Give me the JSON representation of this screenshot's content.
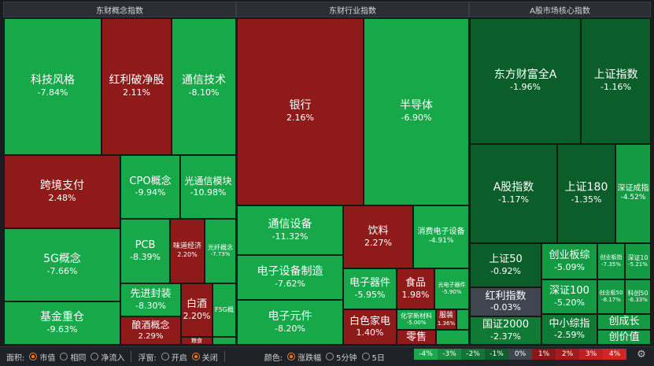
{
  "headers": {
    "concept": "东财概念指数",
    "industry": "东财行业指数",
    "market": "A股市场核心指数"
  },
  "concept_tiles": [
    {
      "name": "科技风格",
      "pct": "-7.84%"
    },
    {
      "name": "红利破净股",
      "pct": "2.11%"
    },
    {
      "name": "通信技术",
      "pct": "-8.10%"
    },
    {
      "name": "跨境支付",
      "pct": "2.48%"
    },
    {
      "name": "CPO概念",
      "pct": "-9.94%"
    },
    {
      "name": "光通信模块",
      "pct": "-10.98%"
    },
    {
      "name": "5G概念",
      "pct": "-7.66%"
    },
    {
      "name": "PCB",
      "pct": "-8.39%"
    },
    {
      "name": "味道经济",
      "pct": "2.20%"
    },
    {
      "name": "光纤概念",
      "pct": "-7.73%"
    },
    {
      "name": "先进封装",
      "pct": "-8.30%"
    },
    {
      "name": "白酒",
      "pct": "2.20%"
    },
    {
      "name": "F5G概",
      "pct": ""
    },
    {
      "name": "基金重仓",
      "pct": "-9.63%"
    },
    {
      "name": "酿酒概念",
      "pct": "2.29%"
    },
    {
      "name": "粮食",
      "pct": ""
    }
  ],
  "industry_tiles": [
    {
      "name": "银行",
      "pct": "2.16%"
    },
    {
      "name": "半导体",
      "pct": "-6.90%"
    },
    {
      "name": "通信设备",
      "pct": "-11.32%"
    },
    {
      "name": "饮料",
      "pct": "2.27%"
    },
    {
      "name": "消费电子设备",
      "pct": "-4.91%"
    },
    {
      "name": "电子设备制造",
      "pct": "-7.62%"
    },
    {
      "name": "电子器件",
      "pct": "-5.95%"
    },
    {
      "name": "食品",
      "pct": "1.98%"
    },
    {
      "name": "光电子器件",
      "pct": "-5.90%"
    },
    {
      "name": "电子元件",
      "pct": "-8.20%"
    },
    {
      "name": "白色家电",
      "pct": "1.40%"
    },
    {
      "name": "化学新材料",
      "pct": "-5.00%"
    },
    {
      "name": "服装",
      "pct": "1.36%"
    },
    {
      "name": "零售",
      "pct": ""
    }
  ],
  "market_tiles": [
    {
      "name": "东方财富全A",
      "pct": "-1.96%"
    },
    {
      "name": "上证指数",
      "pct": "-1.16%"
    },
    {
      "name": "A股指数",
      "pct": "-1.17%"
    },
    {
      "name": "上证180",
      "pct": "-1.35%"
    },
    {
      "name": "深证成指",
      "pct": "-4.52%"
    },
    {
      "name": "上证50",
      "pct": "-0.92%"
    },
    {
      "name": "创业板综",
      "pct": "-5.09%"
    },
    {
      "name": "创业板指",
      "pct": "-7.35%"
    },
    {
      "name": "深证10",
      "pct": "-5.21%"
    },
    {
      "name": "红利指数",
      "pct": "-0.03%"
    },
    {
      "name": "深证100",
      "pct": "-5.20%"
    },
    {
      "name": "创业板50",
      "pct": "-8.17%"
    },
    {
      "name": "科创50",
      "pct": "-6.33%"
    },
    {
      "name": "国证2000",
      "pct": "-2.37%"
    },
    {
      "name": "中小综指",
      "pct": "-2.59%"
    },
    {
      "name": "创成长",
      "pct": ""
    },
    {
      "name": "创价值",
      "pct": ""
    }
  ],
  "toolbar": {
    "area_label": "面积:",
    "area_opts": [
      "市值",
      "相同",
      "净流入"
    ],
    "float_label": "浮窗:",
    "float_opts": [
      "开启",
      "关闭"
    ],
    "color_label": "颜色:",
    "color_opts": [
      "涨跌幅",
      "5分钟",
      "5日"
    ]
  },
  "legend": [
    "-4%",
    "-3%",
    "-2%",
    "-1%",
    "0%",
    "1%",
    "2%",
    "3%",
    "4%"
  ],
  "legend_colors": [
    "#1aa84b",
    "#168d3f",
    "#127535",
    "#0e5f2b",
    "#3f4650",
    "#8a1818",
    "#a31c1c",
    "#bf2020",
    "#d62424"
  ]
}
